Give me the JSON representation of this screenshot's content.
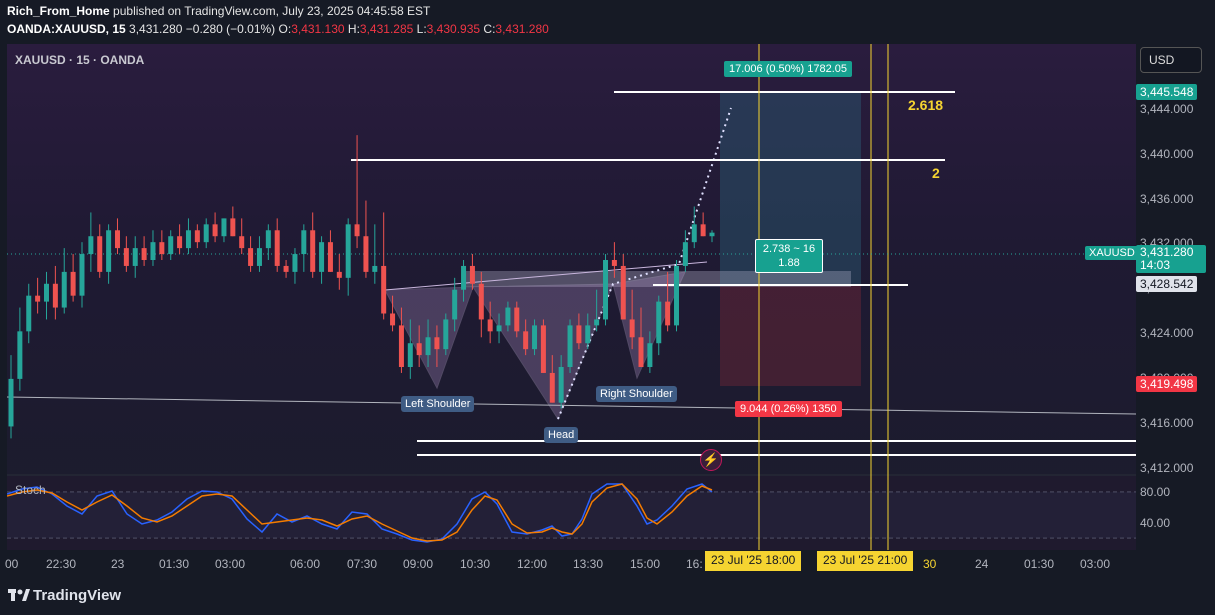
{
  "header": {
    "publisher": "Rich_From_Home",
    "published_text": "published on TradingView.com, July 23, 2025 04:45:58 EST",
    "symbol": "OANDA:XAUUSD, 15",
    "last": "3,431.280",
    "change": "−0.280 (−0.01%)",
    "o_label": "O:",
    "o": "3,431.130",
    "h_label": "H:",
    "h": "3,431.285",
    "l_label": "L:",
    "l": "3,430.935",
    "c_label": "C:",
    "c": "3,431.280"
  },
  "chart_label": "XAUUSD · 15 · OANDA",
  "currency_button": "USD",
  "price_axis": {
    "ticks": [
      "3,444.000",
      "3,440.000",
      "3,436.000",
      "3,432.000",
      "3,428.000",
      "3,424.000",
      "3,420.000",
      "3,416.000",
      "3,412.000"
    ],
    "tag_target": "3,445.548",
    "tag_symbol": "XAUUSD",
    "tag_current": "3,431.280",
    "tag_countdown": "14:03",
    "tag_entry": "3,428.542",
    "tag_stop": "3,419.498",
    "stoch_ticks": [
      "80.00",
      "40.00"
    ]
  },
  "time_axis": {
    "labels": [
      "00",
      "22:30",
      "23",
      "01:30",
      "03:00",
      "06:00",
      "07:30",
      "09:00",
      "10:30",
      "12:00",
      "13:30",
      "15:00",
      "16:",
      "24",
      "01:30",
      "03:00"
    ],
    "date_tag_1": "23 Jul '25   18:00",
    "date_tag_2": "23 Jul '25   21:00",
    "date_tag_2_suffix": "30"
  },
  "annotations": {
    "left_shoulder": "Left Shoulder",
    "head": "Head",
    "right_shoulder": "Right Shoulder",
    "fib_2618": "2.618",
    "fib_2": "2",
    "target_box": "17.006 (0.50%) 1782.05",
    "rr_line1": "2.738 ~ 16",
    "rr_line2": "1.88",
    "stop_box": "9.044 (0.26%) 1350"
  },
  "stoch_label": "Stoch",
  "footer_brand": "TradingView",
  "colors": {
    "up": "#26a69a",
    "down": "#ef5350",
    "fib": "#f5d431",
    "bg": "#161a25"
  },
  "chart_data": {
    "type": "candlestick",
    "symbol": "XAUUSD",
    "interval": "15",
    "ylim": [
      3411,
      3447
    ],
    "x": [
      "21:00",
      "21:15",
      "21:30",
      "21:45",
      "22:00",
      "22:15",
      "22:30",
      "22:45",
      "23:00",
      "23:15",
      "23:30",
      "23:45",
      "00:00",
      "00:15",
      "00:30",
      "00:45",
      "01:00",
      "01:15",
      "01:30",
      "01:45",
      "02:00",
      "02:15",
      "02:30",
      "02:45",
      "03:00",
      "03:15",
      "03:30",
      "03:45",
      "04:00",
      "04:15",
      "04:30",
      "04:45",
      "05:00",
      "05:15",
      "05:30",
      "05:45",
      "06:00",
      "06:15",
      "06:30",
      "06:45",
      "07:00",
      "07:15",
      "07:30",
      "07:45",
      "08:00",
      "08:15",
      "08:30",
      "08:45",
      "09:00",
      "09:15",
      "09:30",
      "09:45",
      "10:00",
      "10:15",
      "10:30",
      "10:45",
      "11:00",
      "11:15",
      "11:30",
      "11:45",
      "12:00",
      "12:15",
      "12:30",
      "12:45",
      "13:00",
      "13:15",
      "13:30",
      "13:45",
      "14:00",
      "14:15",
      "14:30",
      "14:45",
      "15:00",
      "15:15",
      "15:30",
      "15:45",
      "16:00",
      "16:15",
      "16:30",
      "16:45"
    ],
    "open": [
      3415.0,
      3419.0,
      3423.0,
      3426.0,
      3425.5,
      3427.0,
      3425.0,
      3428.0,
      3426.0,
      3429.5,
      3431.0,
      3428.0,
      3431.5,
      3430.0,
      3428.5,
      3430.0,
      3429.0,
      3430.5,
      3429.5,
      3431.0,
      3430.0,
      3431.5,
      3430.5,
      3432.0,
      3431.0,
      3432.5,
      3431.0,
      3430.0,
      3428.5,
      3430.0,
      3431.5,
      3428.5,
      3428.0,
      3429.5,
      3431.5,
      3428.0,
      3430.5,
      3428.0,
      3427.5,
      3432.0,
      3431.0,
      3428.0,
      3428.5,
      3424.5,
      3423.5,
      3420.0,
      3422.0,
      3421.0,
      3422.5,
      3421.5,
      3424.0,
      3426.5,
      3428.5,
      3427.0,
      3424.0,
      3423.0,
      3423.5,
      3425.0,
      3423.0,
      3421.5,
      3423.5,
      3419.5,
      3417.0,
      3420.0,
      3423.5,
      3422.0,
      3423.5,
      3424.0,
      3429.0,
      3428.5,
      3424.0,
      3422.5,
      3420.0,
      3422.0,
      3425.5,
      3423.5,
      3428.5,
      3430.5,
      3432.0,
      3431.0
    ],
    "high": [
      3421.0,
      3425.0,
      3427.0,
      3427.5,
      3428.0,
      3428.5,
      3430.0,
      3429.5,
      3430.5,
      3433.0,
      3432.0,
      3432.0,
      3432.5,
      3431.0,
      3431.0,
      3431.0,
      3431.5,
      3431.5,
      3431.5,
      3432.0,
      3432.5,
      3432.0,
      3432.5,
      3433.0,
      3432.5,
      3433.5,
      3432.5,
      3431.0,
      3431.0,
      3432.0,
      3432.5,
      3429.0,
      3430.0,
      3432.0,
      3433.0,
      3431.0,
      3431.5,
      3429.5,
      3432.5,
      3439.5,
      3434.0,
      3432.0,
      3433.0,
      3426.0,
      3425.0,
      3424.0,
      3423.5,
      3424.0,
      3423.5,
      3424.5,
      3427.5,
      3429.0,
      3429.5,
      3428.0,
      3425.5,
      3424.5,
      3425.5,
      3425.5,
      3424.0,
      3424.0,
      3424.0,
      3421.0,
      3421.0,
      3424.0,
      3424.5,
      3424.5,
      3426.5,
      3429.5,
      3430.5,
      3429.5,
      3426.5,
      3425.0,
      3423.0,
      3426.0,
      3428.0,
      3429.0,
      3431.5,
      3433.5,
      3433.0,
      3431.5
    ],
    "low": [
      3414.0,
      3418.0,
      3422.0,
      3424.5,
      3424.0,
      3424.0,
      3424.5,
      3425.5,
      3425.0,
      3428.0,
      3427.5,
      3427.0,
      3429.5,
      3428.0,
      3427.5,
      3428.5,
      3428.5,
      3429.0,
      3429.0,
      3429.5,
      3429.5,
      3430.0,
      3430.0,
      3430.5,
      3430.5,
      3431.0,
      3429.5,
      3428.0,
      3428.0,
      3429.0,
      3428.0,
      3427.5,
      3427.0,
      3428.0,
      3427.5,
      3427.0,
      3428.0,
      3426.5,
      3426.0,
      3430.0,
      3427.5,
      3427.0,
      3424.0,
      3423.0,
      3419.5,
      3419.0,
      3420.0,
      3420.0,
      3420.0,
      3421.0,
      3423.0,
      3425.5,
      3426.5,
      3422.5,
      3422.0,
      3422.0,
      3423.0,
      3422.5,
      3421.0,
      3421.0,
      3419.5,
      3417.0,
      3416.5,
      3419.5,
      3421.5,
      3421.5,
      3423.0,
      3423.5,
      3427.5,
      3424.0,
      3421.5,
      3420.0,
      3419.5,
      3421.0,
      3423.0,
      3423.0,
      3428.0,
      3430.0,
      3431.0,
      3430.5
    ],
    "close": [
      3419.0,
      3423.0,
      3426.0,
      3425.5,
      3427.0,
      3425.0,
      3428.0,
      3426.0,
      3429.5,
      3431.0,
      3428.0,
      3431.5,
      3430.0,
      3428.5,
      3430.0,
      3429.0,
      3430.5,
      3429.5,
      3431.0,
      3430.0,
      3431.5,
      3430.5,
      3432.0,
      3431.0,
      3432.5,
      3431.0,
      3430.0,
      3428.5,
      3430.0,
      3431.5,
      3428.5,
      3428.0,
      3429.5,
      3431.5,
      3428.0,
      3430.5,
      3428.0,
      3427.5,
      3432.0,
      3431.0,
      3428.0,
      3428.5,
      3424.5,
      3423.5,
      3420.0,
      3422.0,
      3421.0,
      3422.5,
      3421.5,
      3424.0,
      3426.5,
      3428.5,
      3427.0,
      3424.0,
      3423.0,
      3423.5,
      3425.0,
      3423.0,
      3421.5,
      3423.5,
      3419.5,
      3417.0,
      3420.0,
      3423.5,
      3422.0,
      3423.5,
      3424.0,
      3429.0,
      3428.5,
      3424.0,
      3422.5,
      3420.0,
      3422.0,
      3425.5,
      3423.5,
      3428.5,
      3430.5,
      3432.0,
      3431.0,
      3431.3
    ]
  }
}
